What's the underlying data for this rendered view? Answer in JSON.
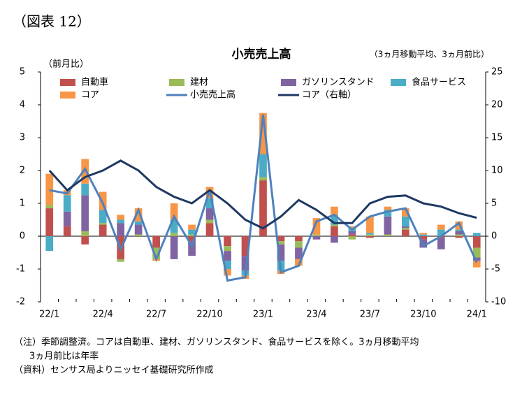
{
  "figure_label": "（図表 12）",
  "chart_data": {
    "type": "bar",
    "title": "小売売上高",
    "y_label": "（前月比）",
    "y2_label": "（3ヵ月移動平均、3ヵ月前比）",
    "categories": [
      "22/1",
      null,
      null,
      "22/4",
      null,
      null,
      "22/7",
      null,
      null,
      "22/10",
      null,
      null,
      "23/1",
      null,
      null,
      "23/4",
      null,
      null,
      "23/7",
      null,
      null,
      "23/10",
      null,
      null,
      "24/1"
    ],
    "series": [
      {
        "name": "自動車",
        "color": "#c0504d",
        "values": [
          0.85,
          0.3,
          -0.25,
          0.35,
          -0.7,
          0,
          -0.35,
          0,
          -0.15,
          0.4,
          -0.3,
          -0.6,
          1.7,
          -0.15,
          -0.15,
          0,
          0.3,
          0.05,
          -0.05,
          0,
          0.2,
          -0.1,
          -0.05,
          -0.05,
          -0.35
        ]
      },
      {
        "name": "建材",
        "color": "#9bbb59",
        "values": [
          0.1,
          0,
          0.15,
          0.05,
          -0.08,
          0.05,
          -0.35,
          0.1,
          0.05,
          0.1,
          -0.15,
          0,
          0.1,
          -0.1,
          -0.2,
          0.05,
          0.05,
          -0.1,
          0.05,
          0.05,
          0.05,
          0,
          0,
          0.05,
          -0.3
        ]
      },
      {
        "name": "ガソリンスタンド",
        "color": "#8064a2",
        "values": [
          0,
          0.45,
          1.1,
          0,
          0.4,
          0.3,
          0,
          -0.7,
          -0.45,
          0.35,
          -0.3,
          -0.45,
          0,
          -0.5,
          -0.35,
          -0.1,
          -0.2,
          0.1,
          0,
          0.55,
          0.05,
          -0.25,
          -0.35,
          0.1,
          -0.1
        ]
      },
      {
        "name": "食品サービス",
        "color": "#4bacc6",
        "values": [
          -0.45,
          0.5,
          0.35,
          0.4,
          0.1,
          0.1,
          0,
          0.4,
          0.15,
          0.3,
          -0.25,
          -0.15,
          0.7,
          -0.3,
          0,
          0,
          0.3,
          0.1,
          0.05,
          0.2,
          0.3,
          0.05,
          0.2,
          0.05,
          0.1
        ]
      },
      {
        "name": "コア",
        "color": "#f79646",
        "values": [
          0.95,
          0.15,
          0.75,
          0.55,
          0.15,
          0.4,
          -0.05,
          0.5,
          0.15,
          0.35,
          -0.2,
          -0.1,
          1.25,
          -0.1,
          -0.2,
          0.5,
          0.25,
          0.05,
          0.5,
          0.1,
          0.25,
          0.05,
          0.15,
          0.25,
          -0.2
        ]
      },
      {
        "name": "小売売上高",
        "color": "#4f81bd",
        "line": true,
        "values": [
          1.4,
          1.3,
          2.05,
          1.0,
          -0.4,
          0.8,
          -0.7,
          0.6,
          -0.3,
          1.4,
          -1.35,
          -1.25,
          3.7,
          -1.1,
          -0.9,
          0.45,
          0.65,
          0.2,
          0.6,
          0.75,
          0.85,
          -0.3,
          0,
          0.4,
          -0.8
        ]
      },
      {
        "name": "コア（右軸）",
        "color": "#1f3864",
        "line": true,
        "axis": "y2",
        "values": [
          10,
          7,
          9,
          10,
          11.5,
          10,
          7.5,
          6,
          5,
          7,
          5,
          2.5,
          1.2,
          3,
          5.5,
          4,
          2,
          2,
          5,
          6,
          6.2,
          5,
          4.5,
          3.5,
          2.8
        ]
      }
    ],
    "ylim": [
      -2,
      5
    ],
    "yticks": [
      -2,
      -1,
      0,
      1,
      2,
      3,
      4,
      5
    ],
    "y2lim": [
      -10,
      25
    ],
    "y2ticks": [
      -10,
      -5,
      0,
      5,
      10,
      15,
      20,
      25
    ]
  },
  "notes": [
    "（注）季節調整済。コアは自動車、建材、ガソリンスタンド、食品サービスを除く。3ヵ月移動平均",
    "3ヵ月前比は年率",
    "（資料）センサス局よりニッセイ基礎研究所作成"
  ]
}
